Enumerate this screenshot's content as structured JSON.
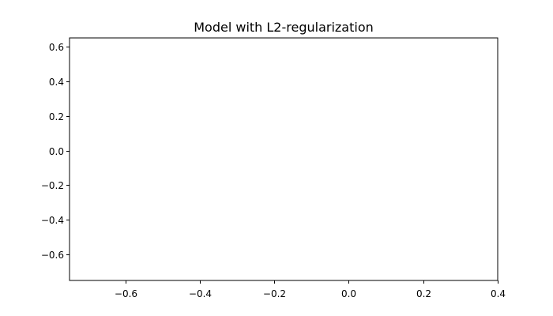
{
  "chart_data": {
    "type": "scatter",
    "title": "Model with L2-regularization",
    "xlabel": "",
    "ylabel": "",
    "xlim": [
      -0.75,
      0.4
    ],
    "ylim": [
      -0.75,
      0.65
    ],
    "x_ticks": [
      -0.6,
      -0.4,
      -0.2,
      0.0,
      0.2,
      0.4
    ],
    "x_tick_labels": [
      "−0.6",
      "−0.4",
      "−0.2",
      "0.0",
      "0.2",
      "0.4"
    ],
    "y_ticks": [
      0.6,
      0.4,
      0.2,
      0.0,
      -0.2,
      -0.4,
      -0.6
    ],
    "y_tick_labels": [
      "0.6",
      "0.4",
      "0.2",
      "0.0",
      "−0.2",
      "−0.4",
      "−0.6"
    ],
    "grid": false,
    "series": []
  }
}
